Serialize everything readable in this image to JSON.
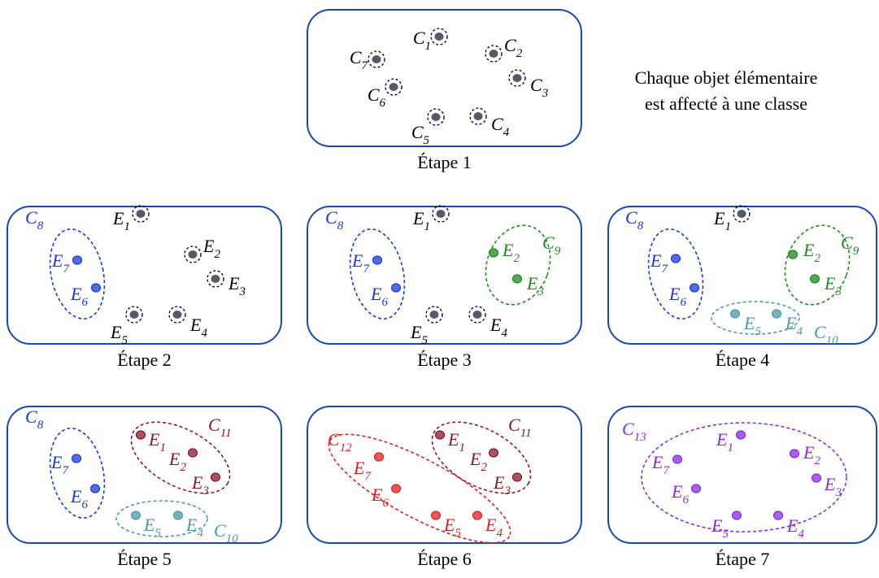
{
  "note_line1": "Chaque objet élémentaire",
  "note_line2": "est affecté à une classe",
  "colors": {
    "frame": "#1a47b8",
    "singleton_point": "#555b66",
    "C8": "#1a3ad9",
    "C9": "#1f8a1f",
    "C10": "#4a9aa8",
    "C11": "#8a1a2a",
    "C12": "#e02020",
    "C13": "#8a2be2"
  },
  "panels": [
    {
      "caption": "Étape 1",
      "singletons": [
        {
          "letter": "C",
          "sub": "1"
        },
        {
          "letter": "C",
          "sub": "2"
        },
        {
          "letter": "C",
          "sub": "3"
        },
        {
          "letter": "C",
          "sub": "4"
        },
        {
          "letter": "C",
          "sub": "5"
        },
        {
          "letter": "C",
          "sub": "6"
        },
        {
          "letter": "C",
          "sub": "7"
        }
      ],
      "clusters": []
    },
    {
      "caption": "Étape 2",
      "singletons": [
        {
          "letter": "E",
          "sub": "1"
        },
        {
          "letter": "E",
          "sub": "2"
        },
        {
          "letter": "E",
          "sub": "3"
        },
        {
          "letter": "E",
          "sub": "4"
        },
        {
          "letter": "E",
          "sub": "5"
        }
      ],
      "clusters": [
        {
          "name": "C",
          "sub": "8",
          "members": [
            {
              "letter": "E",
              "sub": "7"
            },
            {
              "letter": "E",
              "sub": "6"
            }
          ]
        }
      ]
    },
    {
      "caption": "Étape 3",
      "singletons": [
        {
          "letter": "E",
          "sub": "1"
        },
        {
          "letter": "E",
          "sub": "4"
        },
        {
          "letter": "E",
          "sub": "5"
        }
      ],
      "clusters": [
        {
          "name": "C",
          "sub": "8",
          "members": [
            {
              "letter": "E",
              "sub": "7"
            },
            {
              "letter": "E",
              "sub": "6"
            }
          ]
        },
        {
          "name": "C",
          "sub": "9",
          "members": [
            {
              "letter": "E",
              "sub": "2"
            },
            {
              "letter": "E",
              "sub": "3"
            }
          ]
        }
      ]
    },
    {
      "caption": "Étape 4",
      "singletons": [
        {
          "letter": "E",
          "sub": "1"
        }
      ],
      "clusters": [
        {
          "name": "C",
          "sub": "8",
          "members": [
            {
              "letter": "E",
              "sub": "7"
            },
            {
              "letter": "E",
              "sub": "6"
            }
          ]
        },
        {
          "name": "C",
          "sub": "9",
          "members": [
            {
              "letter": "E",
              "sub": "2"
            },
            {
              "letter": "E",
              "sub": "3"
            }
          ]
        },
        {
          "name": "C",
          "sub": "10",
          "members": [
            {
              "letter": "E",
              "sub": "5"
            },
            {
              "letter": "E",
              "sub": "4"
            }
          ]
        }
      ]
    },
    {
      "caption": "Étape 5",
      "singletons": [],
      "clusters": [
        {
          "name": "C",
          "sub": "8",
          "members": [
            {
              "letter": "E",
              "sub": "7"
            },
            {
              "letter": "E",
              "sub": "6"
            }
          ]
        },
        {
          "name": "C",
          "sub": "11",
          "members": [
            {
              "letter": "E",
              "sub": "1"
            },
            {
              "letter": "E",
              "sub": "2"
            },
            {
              "letter": "E",
              "sub": "3"
            }
          ]
        },
        {
          "name": "C",
          "sub": "10",
          "members": [
            {
              "letter": "E",
              "sub": "5"
            },
            {
              "letter": "E",
              "sub": "4"
            }
          ]
        }
      ]
    },
    {
      "caption": "Étape 6",
      "singletons": [],
      "clusters": [
        {
          "name": "C",
          "sub": "12",
          "members": [
            {
              "letter": "E",
              "sub": "7"
            },
            {
              "letter": "E",
              "sub": "6"
            },
            {
              "letter": "E",
              "sub": "5"
            },
            {
              "letter": "E",
              "sub": "4"
            }
          ]
        },
        {
          "name": "C",
          "sub": "11",
          "members": [
            {
              "letter": "E",
              "sub": "1"
            },
            {
              "letter": "E",
              "sub": "2"
            },
            {
              "letter": "E",
              "sub": "3"
            }
          ]
        }
      ]
    },
    {
      "caption": "Étape 7",
      "singletons": [],
      "clusters": [
        {
          "name": "C",
          "sub": "13",
          "members": [
            {
              "letter": "E",
              "sub": "1"
            },
            {
              "letter": "E",
              "sub": "2"
            },
            {
              "letter": "E",
              "sub": "3"
            },
            {
              "letter": "E",
              "sub": "4"
            },
            {
              "letter": "E",
              "sub": "5"
            },
            {
              "letter": "E",
              "sub": "6"
            },
            {
              "letter": "E",
              "sub": "7"
            }
          ]
        }
      ]
    }
  ]
}
